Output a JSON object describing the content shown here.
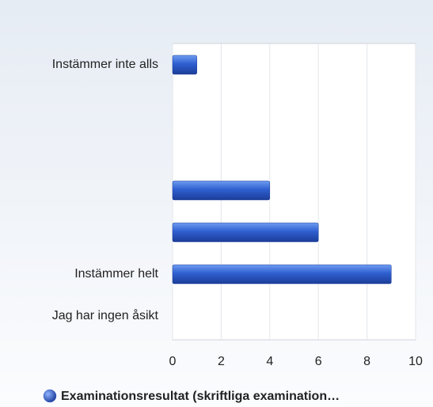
{
  "chart_data": {
    "type": "bar",
    "orientation": "horizontal",
    "categories": [
      "Instämmer inte alls",
      null,
      null,
      null,
      null,
      "Instämmer helt",
      "Jag har ingen åsikt"
    ],
    "series": [
      {
        "name": "Examinationsresultat (skriftliga examination…",
        "color": "#2f5fd0",
        "values": [
          1,
          0,
          0,
          4,
          6,
          9,
          0
        ]
      }
    ],
    "xlim": [
      0,
      10
    ],
    "xticks": [
      0,
      2,
      4,
      6,
      8,
      10
    ],
    "grid": true,
    "legend": "bottom"
  }
}
